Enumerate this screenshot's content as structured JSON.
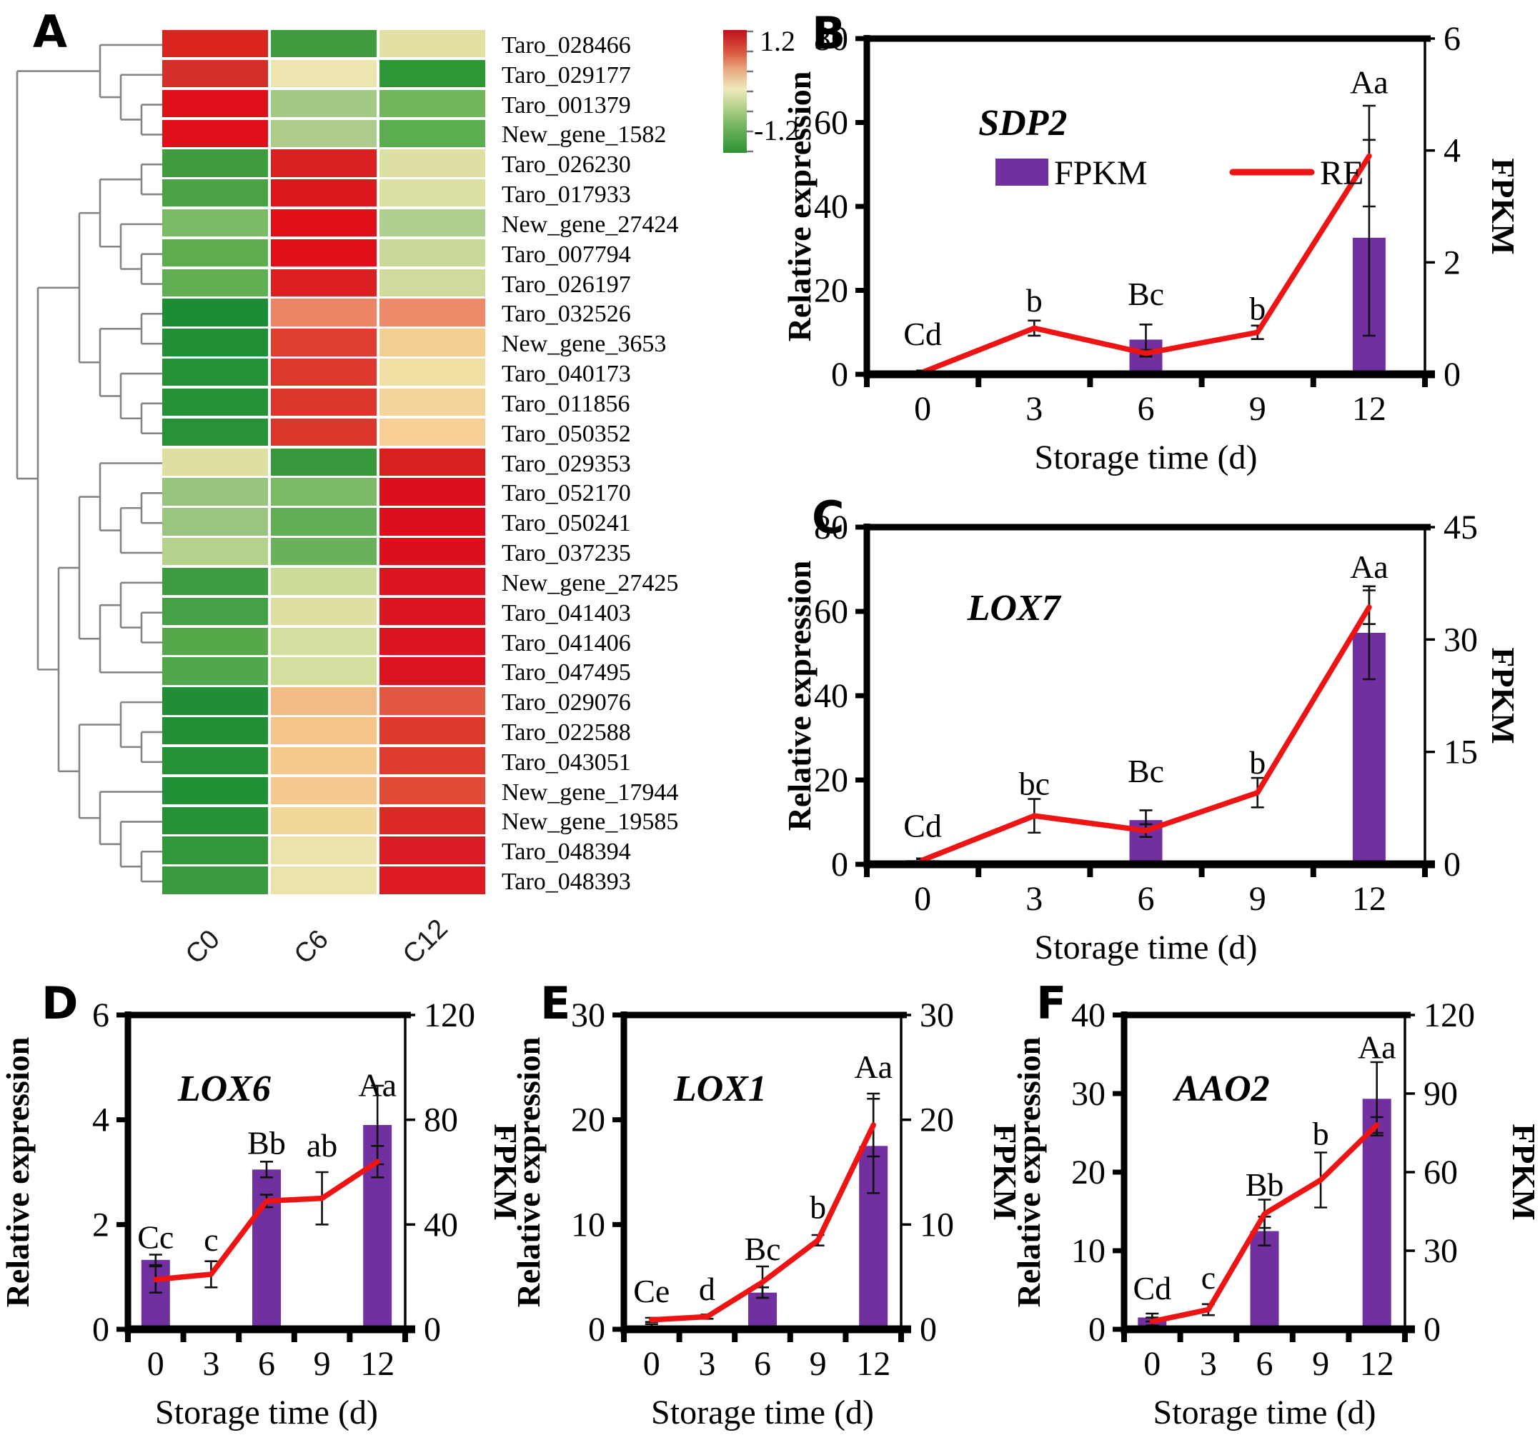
{
  "colors": {
    "bar_fill": "#7030A0",
    "line_stroke": "#EE1414",
    "dendrogram_stroke": "#848484",
    "error_bar": "#111111",
    "axis": "#000000"
  },
  "legend": {
    "fpkm_label": "FPKM",
    "re_label": "RE"
  },
  "chart_data": [
    {
      "id": "A",
      "label": "A",
      "type": "heatmap",
      "columns": [
        "C0",
        "C6",
        "C12"
      ],
      "colorbar": {
        "max": "1.2",
        "min": "-1.2"
      },
      "rows": [
        {
          "gene": "Taro_028466",
          "colors": [
            "#da2420",
            "#3f9d3f",
            "#e3e0a4"
          ]
        },
        {
          "gene": "Taro_029177",
          "colors": [
            "#d62e28",
            "#ece5af",
            "#2f9636"
          ]
        },
        {
          "gene": "Taro_001379",
          "colors": [
            "#df1019",
            "#a3ca85",
            "#74b65c"
          ]
        },
        {
          "gene": "New_gene_1582",
          "colors": [
            "#df1019",
            "#aecd8d",
            "#5cad50"
          ]
        },
        {
          "gene": "Taro_026230",
          "colors": [
            "#3f9d3d",
            "#da211f",
            "#dedfa2"
          ]
        },
        {
          "gene": "Taro_017933",
          "colors": [
            "#4aa244",
            "#dc1a1e",
            "#dce0a3"
          ]
        },
        {
          "gene": "New_gene_27424",
          "colors": [
            "#7cbb66",
            "#e01019",
            "#aecf90"
          ]
        },
        {
          "gene": "Taro_007794",
          "colors": [
            "#5dad4f",
            "#e01019",
            "#c8d999"
          ]
        },
        {
          "gene": "Taro_026197",
          "colors": [
            "#60af52",
            "#dc201f",
            "#cedb9d"
          ]
        },
        {
          "gene": "Taro_032526",
          "colors": [
            "#1d8d35",
            "#ee8466",
            "#ec8a69"
          ]
        },
        {
          "gene": "New_gene_3653",
          "colors": [
            "#218f36",
            "#dd3e30",
            "#f2cf90"
          ]
        },
        {
          "gene": "Taro_040173",
          "colors": [
            "#249136",
            "#dc392c",
            "#f0dfa3"
          ]
        },
        {
          "gene": "Taro_011856",
          "colors": [
            "#249136",
            "#dc352b",
            "#f3d49b"
          ]
        },
        {
          "gene": "Taro_050352",
          "colors": [
            "#279237",
            "#dc352b",
            "#f5cf95"
          ]
        },
        {
          "gene": "Taro_029353",
          "colors": [
            "#dedfa0",
            "#38993c",
            "#d8201f"
          ]
        },
        {
          "gene": "Taro_052170",
          "colors": [
            "#98c47e",
            "#7cbb66",
            "#dd0f1d"
          ]
        },
        {
          "gene": "Taro_050241",
          "colors": [
            "#9ac580",
            "#61ae54",
            "#dd0f1d"
          ]
        },
        {
          "gene": "Taro_037235",
          "colors": [
            "#b5d18c",
            "#69b25a",
            "#dd0f1d"
          ]
        },
        {
          "gene": "New_gene_27425",
          "colors": [
            "#3e9c40",
            "#ccdb98",
            "#dc1520"
          ]
        },
        {
          "gene": "Taro_041403",
          "colors": [
            "#45a046",
            "#dee0a1",
            "#db1621"
          ]
        },
        {
          "gene": "Taro_041406",
          "colors": [
            "#55a94b",
            "#d5de9e",
            "#da1420"
          ]
        },
        {
          "gene": "Taro_047495",
          "colors": [
            "#52a74a",
            "#d5de9f",
            "#db1420"
          ]
        },
        {
          "gene": "Taro_029076",
          "colors": [
            "#1f8e36",
            "#f4bc85",
            "#e25742"
          ]
        },
        {
          "gene": "Taro_022588",
          "colors": [
            "#218f36",
            "#f4c489",
            "#dd3a2e"
          ]
        },
        {
          "gene": "Taro_043051",
          "colors": [
            "#249136",
            "#f5c88c",
            "#de3c2f"
          ]
        },
        {
          "gene": "New_gene_17944",
          "colors": [
            "#209036",
            "#f5c98d",
            "#e04b38"
          ]
        },
        {
          "gene": "New_gene_19585",
          "colors": [
            "#259136",
            "#f2d79b",
            "#dc2a26"
          ]
        },
        {
          "gene": "Taro_048394",
          "colors": [
            "#33983b",
            "#ebe3ab",
            "#db1b23"
          ]
        },
        {
          "gene": "Taro_048393",
          "colors": [
            "#399b3e",
            "#eae3aa",
            "#db1a22"
          ]
        }
      ],
      "dendrogram": [
        [
          0,
          [
            1,
            [
              2,
              3
            ]
          ]
        ],
        [
          [
            [
              [
                4,
                5
              ],
              [
                6,
                [
                  7,
                  8
                ]
              ]
            ],
            [
              [
                9,
                10
              ],
              [
                11,
                [
                  12,
                  13
                ]
              ]
            ]
          ],
          [
            [
              [
                14,
                [
                  [
                    15,
                    16
                  ],
                  17
                ]
              ],
              [
                [
                  18,
                  [
                    19,
                    20
                  ]
                ],
                21
              ]
            ],
            [
              [
                22,
                [
                  23,
                  24
                ]
              ],
              [
                25,
                [
                  26,
                  [
                    27,
                    28
                  ]
                ]
              ]
            ]
          ]
        ]
      ]
    },
    {
      "id": "B",
      "label": "B",
      "type": "bar+line",
      "title": "SDP2",
      "x": {
        "categories": [
          0,
          3,
          6,
          9,
          12
        ],
        "label": "Storage time (d)"
      },
      "left_axis": {
        "label": "Relative expression",
        "min": 0,
        "max": 80,
        "ticks": [
          0,
          20,
          40,
          60,
          80
        ]
      },
      "right_axis": {
        "label": "FPKM",
        "min": 0,
        "max": 6,
        "ticks": [
          0,
          2,
          4,
          6
        ]
      },
      "series": [
        {
          "name": "RE",
          "axis": "left",
          "values": [
            0.5,
            11,
            5,
            10,
            52
          ],
          "errors": [
            0.4,
            1.8,
            0.8,
            1.6,
            12
          ]
        },
        {
          "name": "FPKM",
          "axis": "right",
          "values": [
            0,
            0,
            0.62,
            0,
            2.44
          ],
          "errors": [
            0,
            0,
            0.27,
            0,
            1.75
          ]
        }
      ],
      "letters": [
        {
          "t": "Cd",
          "y": 7
        },
        {
          "t": "b",
          "y": 15
        },
        {
          "t": "Bc",
          "y": 16.5
        },
        {
          "t": "b",
          "y": 13
        },
        {
          "t": "Aa",
          "y": 67
        }
      ],
      "show_legend": true
    },
    {
      "id": "C",
      "label": "C",
      "type": "bar+line",
      "title": "LOX7",
      "x": {
        "categories": [
          0,
          3,
          6,
          9,
          12
        ],
        "label": "Storage time (d)"
      },
      "left_axis": {
        "label": "Relative expression",
        "min": 0,
        "max": 80,
        "ticks": [
          0,
          20,
          40,
          60,
          80
        ]
      },
      "right_axis": {
        "label": "FPKM",
        "min": 0,
        "max": 45,
        "ticks": [
          0,
          15,
          30,
          45
        ]
      },
      "series": [
        {
          "name": "RE",
          "axis": "left",
          "values": [
            1,
            11.5,
            8,
            17,
            61
          ],
          "errors": [
            0.4,
            4,
            1.5,
            3.5,
            4
          ]
        },
        {
          "name": "FPKM",
          "axis": "right",
          "values": [
            0.55,
            0,
            5.9,
            0,
            30.9
          ],
          "errors": [
            0.15,
            0,
            1.3,
            0,
            6.2
          ]
        }
      ],
      "letters": [
        {
          "t": "Cd",
          "y": 6.5
        },
        {
          "t": "bc",
          "y": 16.5
        },
        {
          "t": "Bc",
          "y": 19.5
        },
        {
          "t": "b",
          "y": 21.5
        },
        {
          "t": "Aa",
          "y": 68
        }
      ],
      "show_legend": false
    },
    {
      "id": "D",
      "label": "D",
      "type": "bar+line",
      "title": "LOX6",
      "x": {
        "categories": [
          0,
          3,
          6,
          9,
          12
        ],
        "label": "Storage time (d)"
      },
      "left_axis": {
        "label": "Relative expression",
        "min": 0,
        "max": 6,
        "ticks": [
          0,
          2,
          4,
          6
        ]
      },
      "right_axis": {
        "label": "FPKM",
        "min": 0,
        "max": 120,
        "ticks": [
          0,
          40,
          80,
          120
        ]
      },
      "series": [
        {
          "name": "RE",
          "axis": "left",
          "values": [
            0.95,
            1.05,
            2.45,
            2.5,
            3.2
          ],
          "errors": [
            0.25,
            0.25,
            0.12,
            0.5,
            0.3
          ]
        },
        {
          "name": "FPKM",
          "axis": "right",
          "values": [
            26.5,
            0,
            61,
            0,
            78
          ],
          "errors": [
            2,
            0,
            3,
            0,
            15
          ]
        }
      ],
      "letters": [
        {
          "t": "Cc",
          "y": 1.55
        },
        {
          "t": "c",
          "y": 1.5
        },
        {
          "t": "Bb",
          "y": 3.35
        },
        {
          "t": "ab",
          "y": 3.3
        },
        {
          "t": "Aa",
          "y": 4.45
        }
      ],
      "show_legend": false
    },
    {
      "id": "E",
      "label": "E",
      "type": "bar+line",
      "title": "LOX1",
      "x": {
        "categories": [
          0,
          3,
          6,
          9,
          12
        ],
        "label": "Storage time (d)"
      },
      "left_axis": {
        "label": "Relative expression",
        "min": 0,
        "max": 30,
        "ticks": [
          0,
          10,
          20,
          30
        ]
      },
      "right_axis": {
        "label": "FPKM",
        "min": 0,
        "max": 30,
        "ticks": [
          0,
          10,
          20,
          30
        ]
      },
      "series": [
        {
          "name": "RE",
          "axis": "left",
          "values": [
            0.9,
            1.2,
            4.5,
            8.5,
            19.5
          ],
          "errors": [
            0.2,
            0.2,
            1.5,
            0.5,
            3
          ]
        },
        {
          "name": "FPKM",
          "axis": "right",
          "values": [
            0.3,
            0,
            3.5,
            0,
            17.5
          ],
          "errors": [
            0.2,
            0,
            0.5,
            0,
            4.5
          ]
        }
      ],
      "letters": [
        {
          "t": "Ce",
          "y": 2.6
        },
        {
          "t": "d",
          "y": 2.8
        },
        {
          "t": "Bc",
          "y": 6.6
        },
        {
          "t": "b",
          "y": 10.6
        },
        {
          "t": "Aa",
          "y": 24
        }
      ],
      "show_legend": false
    },
    {
      "id": "F",
      "label": "F",
      "type": "bar+line",
      "title": "AAO2",
      "x": {
        "categories": [
          0,
          3,
          6,
          9,
          12
        ],
        "label": "Storage time (d)"
      },
      "left_axis": {
        "label": "Relative expression",
        "min": 0,
        "max": 40,
        "ticks": [
          0,
          10,
          20,
          30,
          40
        ]
      },
      "right_axis": {
        "label": "FPKM",
        "min": 0,
        "max": 120,
        "ticks": [
          0,
          30,
          60,
          90,
          120
        ]
      },
      "series": [
        {
          "name": "RE",
          "axis": "left",
          "values": [
            1,
            2.5,
            14.7,
            19,
            26
          ],
          "errors": [
            0.5,
            0.7,
            1.8,
            3.5,
            1
          ]
        },
        {
          "name": "FPKM",
          "axis": "right",
          "values": [
            4.5,
            0,
            37.5,
            0,
            88
          ],
          "errors": [
            1.5,
            0,
            5.5,
            0,
            14
          ]
        }
      ],
      "letters": [
        {
          "t": "Cd",
          "y": 3.8
        },
        {
          "t": "c",
          "y": 5.2
        },
        {
          "t": "Bb",
          "y": 17
        },
        {
          "t": "b",
          "y": 23.5
        },
        {
          "t": "Aa",
          "y": 34.5
        }
      ],
      "show_legend": false
    }
  ]
}
